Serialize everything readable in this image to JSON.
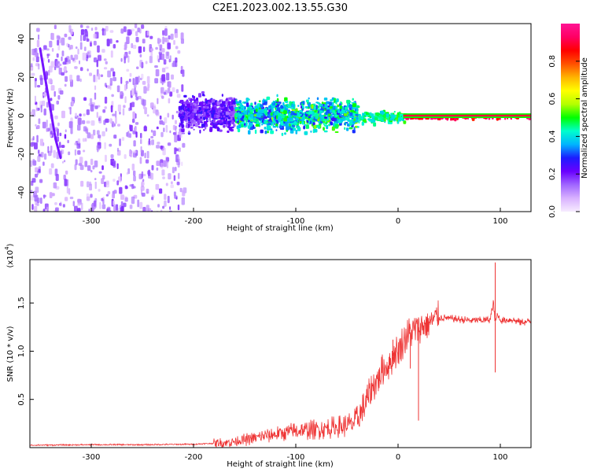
{
  "title": "C2E1.2023.002.13.55.G30",
  "chart_data": [
    {
      "type": "heatmap",
      "xlabel": "Height of straight line (km)",
      "ylabel": "Frequency (Hz)",
      "xlim": [
        -360,
        130
      ],
      "ylim": [
        -50,
        48
      ],
      "x_ticks": [
        -300,
        -200,
        -100,
        0,
        100
      ],
      "y_ticks": [
        -40,
        -20,
        0,
        20,
        40
      ],
      "colorbar": {
        "label": "Normalized spectral amplitude",
        "range": [
          0,
          1
        ],
        "ticks": [
          0.0,
          0.2,
          0.4,
          0.6,
          0.8
        ],
        "colors": [
          "#f7ecff",
          "#d9b2ff",
          "#a066ff",
          "#6a00ff",
          "#1c1cff",
          "#00b4ff",
          "#00ffcc",
          "#00ff00",
          "#b4ff00",
          "#ffff00",
          "#ffb400",
          "#ff5000",
          "#ff0000",
          "#ff0064",
          "#ff1493"
        ]
      },
      "regions": [
        {
          "x_range": [
            -360,
            -210
          ],
          "freq_range": [
            -50,
            48
          ],
          "amplitude": 0.12,
          "pattern": "speckled noise"
        },
        {
          "x_range": [
            -215,
            -160
          ],
          "freq_range": [
            -10,
            14
          ],
          "amplitude": 0.2
        },
        {
          "x_range": [
            -160,
            -40
          ],
          "freq_range": [
            -10,
            12
          ],
          "amplitude": 0.3,
          "peak_amplitude": 0.5
        },
        {
          "x_range": [
            -40,
            5
          ],
          "freq_range": [
            -4,
            4
          ],
          "amplitude": 0.45
        },
        {
          "x_range": [
            5,
            130
          ],
          "freq_range": [
            -1,
            1
          ],
          "amplitude": 0.9
        }
      ],
      "series": [
        {
          "name": "",
          "x": [
            -350,
            -342,
            -335,
            -330
          ],
          "y": [
            35,
            10,
            -12,
            -22
          ]
        }
      ]
    },
    {
      "type": "line",
      "xlabel": "Height of straight line (km)",
      "ylabel": "SNR (10 * v/v)",
      "multiplier": "(x10^4)",
      "multiplier_base": "x10",
      "multiplier_exp": "4",
      "xlim": [
        -360,
        130
      ],
      "ylim": [
        0,
        1.95
      ],
      "x_ticks": [
        -300,
        -200,
        -100,
        0,
        100
      ],
      "y_ticks": [
        0.5,
        1.0,
        1.5
      ],
      "y_tick_labels": [
        "0.5",
        "1.0",
        "1.5"
      ],
      "color": "#ee3333",
      "series": [
        {
          "name": "",
          "x": [
            -360,
            -300,
            -250,
            -200,
            -170,
            -150,
            -130,
            -110,
            -90,
            -70,
            -55,
            -45,
            -40,
            -35,
            -30,
            -25,
            -20,
            -15,
            -10,
            -5,
            0,
            5,
            10,
            15,
            20,
            25,
            30,
            35,
            40,
            50,
            60,
            70,
            80,
            90,
            93,
            95,
            97,
            100,
            110,
            120,
            130
          ],
          "y": [
            0.025,
            0.03,
            0.03,
            0.035,
            0.05,
            0.08,
            0.12,
            0.16,
            0.18,
            0.2,
            0.22,
            0.25,
            0.3,
            0.38,
            0.5,
            0.62,
            0.72,
            0.8,
            0.85,
            0.95,
            1.02,
            1.1,
            1.18,
            1.22,
            1.25,
            1.28,
            1.3,
            1.33,
            1.35,
            1.34,
            1.33,
            1.32,
            1.32,
            1.33,
            1.5,
            1.3,
            1.38,
            1.32,
            1.33,
            1.3,
            1.31
          ],
          "spikes": [
            {
              "x": 95,
              "y": 1.92
            },
            {
              "x": 95,
              "y": 0.78
            },
            {
              "x": 20,
              "y": 0.28
            },
            {
              "x": 12,
              "y": 0.82
            },
            {
              "x": -5,
              "y": 1.12
            }
          ]
        }
      ]
    }
  ]
}
